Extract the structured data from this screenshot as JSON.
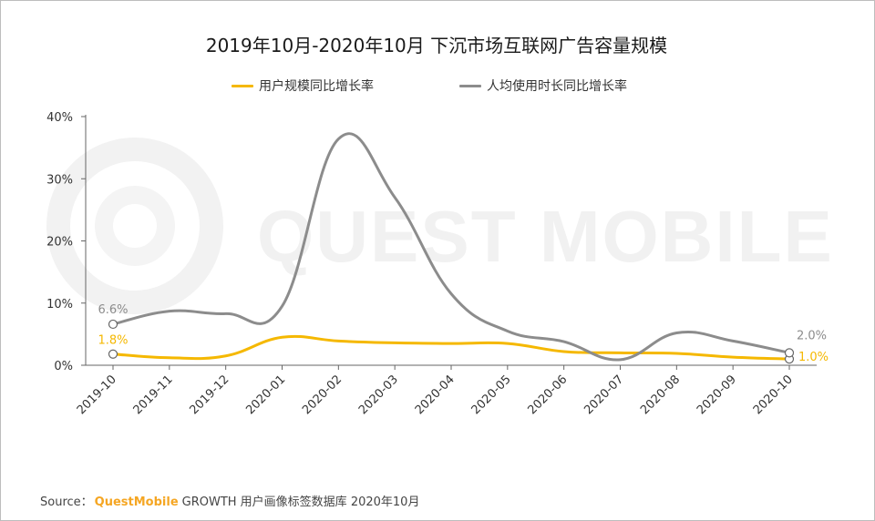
{
  "chart_data": {
    "type": "line",
    "title": "2019年10月-2020年10月 下沉市场互联网广告容量规模",
    "categories": [
      "2019-10",
      "2019-11",
      "2019-12",
      "2020-01",
      "2020-02",
      "2020-03",
      "2020-04",
      "2020-05",
      "2020-06",
      "2020-07",
      "2020-08",
      "2020-09",
      "2020-10"
    ],
    "ylim": [
      0,
      40
    ],
    "yticks": [
      "0%",
      "10%",
      "20%",
      "30%",
      "40%"
    ],
    "grid": false,
    "legend_placement": "top-center",
    "series": [
      {
        "name": "用户规模同比增长率",
        "color": "#f5b800",
        "values": [
          1.8,
          1.2,
          1.5,
          4.5,
          3.9,
          3.6,
          3.5,
          3.5,
          2.2,
          2.0,
          1.9,
          1.3,
          1.0
        ],
        "end_labels": {
          "first": "1.8%",
          "last": "1.0%"
        }
      },
      {
        "name": "人均使用时长同比增长率",
        "color": "#8c8c8c",
        "values": [
          6.6,
          8.7,
          8.3,
          9.5,
          36.4,
          27.0,
          11.5,
          5.5,
          3.8,
          0.9,
          5.2,
          3.9,
          2.0
        ],
        "end_labels": {
          "first": "6.6%",
          "last": "2.0%"
        }
      }
    ]
  },
  "watermark": "QUEST MOBILE",
  "source": {
    "label": "Source：",
    "brand": "QuestMobile",
    "text": "GROWTH 用户画像标签数据库 2020年10月"
  }
}
